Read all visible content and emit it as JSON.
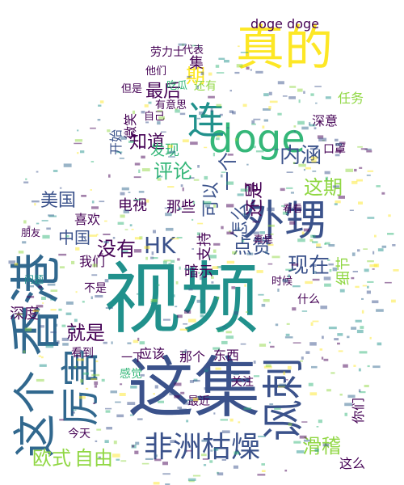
{
  "word_cloud": {
    "palette": {
      "purple": "#440154",
      "indigo": "#3b528b",
      "blue": "#31688e",
      "teal": "#21918c",
      "green": "#35b779",
      "lime": "#90d743",
      "yellow": "#fde725"
    },
    "words": [
      "视频",
      "这集",
      "香港",
      "外甥",
      "这个",
      "厉害",
      "讽刺",
      "非洲枯燥",
      "真的",
      "doge",
      "连",
      "欧式",
      "自由",
      "滑稽",
      "怎么",
      "现在",
      "点赞",
      "内涵",
      "HK",
      "没有",
      "这期",
      "评论",
      "知道",
      "美国",
      "中国",
      "最后",
      "就是",
      "深度",
      "我们",
      "细节",
      "暗示",
      "支持",
      "可以",
      "一个",
      "还是",
      "电视",
      "那些",
      "开始",
      "发现",
      "喜欢",
      "期",
      "劳力士",
      "doge doge",
      "这么",
      "你们",
      "东西",
      "应该",
      "那个",
      "感觉",
      "看到",
      "不是",
      "什么",
      "口罩",
      "今天",
      "一下",
      "关注",
      "最近",
      "他们",
      "自己",
      "但是",
      "有意思",
      "吃瓜",
      "集",
      "还有",
      "微笑",
      "代表",
      "深意",
      "任务",
      "时候",
      "真是",
      "hb",
      "看看",
      "朋友",
      "问题"
    ]
  }
}
